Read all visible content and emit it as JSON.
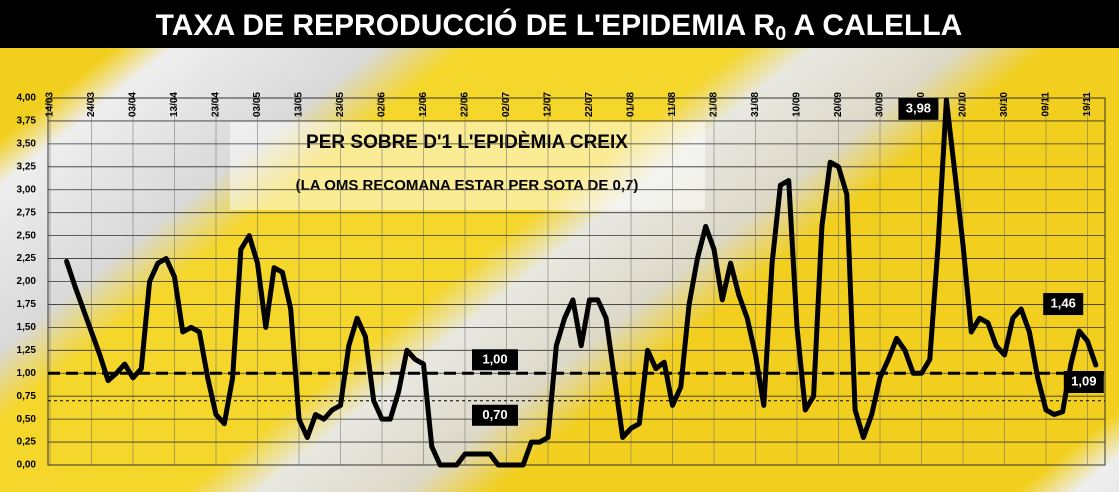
{
  "chart_data": {
    "type": "line",
    "title_main": "TAXA DE REPRODUCCIÓ DE L'EPIDEMIA R",
    "title_subscript": "0",
    "title_end": "A CALELLA",
    "annotations": [
      "PER SOBRE D'1 L'EPIDÈMIA CREIX",
      "(LA OMS RECOMANA ESTAR PER SOTA DE 0,7)"
    ],
    "categories": [
      "14/03",
      null,
      null,
      null,
      null,
      "24/03",
      null,
      null,
      null,
      null,
      "03/04",
      null,
      null,
      null,
      null,
      "13/04",
      null,
      null,
      null,
      null,
      "23/04",
      null,
      null,
      null,
      null,
      "03/05",
      null,
      null,
      null,
      null,
      "13/05",
      null,
      null,
      null,
      null,
      "23/05",
      null,
      null,
      null,
      null,
      "02/06",
      null,
      null,
      null,
      null,
      "12/06",
      null,
      null,
      null,
      null,
      "22/06",
      null,
      null,
      null,
      null,
      "02/07",
      null,
      null,
      null,
      null,
      "12/07",
      null,
      null,
      null,
      null,
      "22/07",
      null,
      null,
      null,
      null,
      "01/08",
      null,
      null,
      null,
      null,
      "11/08",
      null,
      null,
      null,
      null,
      "21/08",
      null,
      null,
      null,
      null,
      "31/08",
      null,
      null,
      null,
      null,
      "10/09",
      null,
      null,
      null,
      null,
      "20/09",
      null,
      null,
      null,
      null,
      "30/09",
      null,
      null,
      null,
      null,
      "10/10",
      null,
      null,
      null,
      null,
      "20/10",
      null,
      null,
      null,
      null,
      "30/10",
      null,
      null,
      null,
      null,
      "09/11",
      null,
      null,
      null,
      null,
      "19/11",
      null
    ],
    "series": [
      {
        "color": "#000000",
        "values": [
          null,
          null,
          2.22,
          1.95,
          1.7,
          1.45,
          1.2,
          0.92,
          1.0,
          1.1,
          0.95,
          1.05,
          2.0,
          2.2,
          2.25,
          2.05,
          1.45,
          1.5,
          1.45,
          0.95,
          0.55,
          0.45,
          0.95,
          2.35,
          2.5,
          2.2,
          1.5,
          2.15,
          2.1,
          1.7,
          0.5,
          0.3,
          0.55,
          0.5,
          0.6,
          0.65,
          1.3,
          1.6,
          1.4,
          0.7,
          0.5,
          0.5,
          0.8,
          1.25,
          1.15,
          1.1,
          0.2,
          0,
          0,
          0,
          0.12,
          0.12,
          0.12,
          0.12,
          0,
          0,
          0,
          0,
          0.25,
          0.25,
          0.3,
          1.3,
          1.6,
          1.8,
          1.3,
          1.8,
          1.8,
          1.6,
          0.95,
          0.3,
          0.4,
          0.45,
          1.25,
          1.05,
          1.12,
          0.65,
          0.85,
          1.75,
          2.25,
          2.6,
          2.35,
          1.8,
          2.2,
          1.85,
          1.6,
          1.2,
          0.65,
          2.2,
          3.05,
          3.1,
          1.5,
          0.6,
          0.75,
          2.6,
          3.3,
          3.25,
          2.95,
          0.6,
          0.3,
          0.55,
          0.95,
          1.15,
          1.38,
          1.25,
          1.0,
          1.0,
          1.15,
          2.4,
          3.98,
          3.2,
          2.4,
          1.45,
          1.6,
          1.55,
          1.3,
          1.2,
          1.6,
          1.7,
          1.45,
          0.95,
          0.6,
          0.55,
          0.58,
          1.1,
          1.46,
          1.35,
          1.09
        ],
        "value_labels": [
          null,
          null,
          null,
          null,
          null,
          null,
          null,
          null,
          null,
          null,
          null,
          null,
          null,
          null,
          null,
          null,
          null,
          null,
          null,
          null,
          null,
          null,
          null,
          null,
          null,
          null,
          null,
          null,
          null,
          null,
          null,
          null,
          null,
          null,
          null,
          null,
          null,
          null,
          null,
          null,
          null,
          null,
          null,
          null,
          null,
          null,
          null,
          null,
          null,
          null,
          null,
          null,
          null,
          null,
          null,
          null,
          null,
          null,
          null,
          null,
          null,
          null,
          null,
          null,
          null,
          null,
          null,
          null,
          null,
          null,
          null,
          null,
          null,
          null,
          null,
          null,
          null,
          null,
          null,
          null,
          null,
          null,
          null,
          null,
          null,
          null,
          null,
          null,
          null,
          null,
          null,
          null,
          null,
          null,
          null,
          null,
          null,
          null,
          null,
          null,
          null,
          null,
          null,
          null,
          null,
          null,
          null,
          null,
          "3,98",
          null,
          null,
          null,
          null,
          null,
          null,
          null,
          null,
          null,
          null,
          null,
          null,
          null,
          null,
          null,
          "1,46",
          null,
          "1,09"
        ]
      }
    ],
    "reference_lines": [
      {
        "value": 1,
        "label": "1,00",
        "style": "dashed"
      },
      {
        "value": 0.7,
        "label": "0,70",
        "style": "dotted"
      }
    ],
    "ylim": [
      0,
      4
    ],
    "yticks": [
      {
        "value": 0,
        "label": "0,00"
      },
      {
        "value": 0.25,
        "label": "0,25"
      },
      {
        "value": 0.5,
        "label": "0,50"
      },
      {
        "value": 0.75,
        "label": "0,75"
      },
      {
        "value": 1,
        "label": "1,00"
      },
      {
        "value": 1.25,
        "label": "1,25"
      },
      {
        "value": 1.5,
        "label": "1,50"
      },
      {
        "value": 1.75,
        "label": "1,75"
      },
      {
        "value": 2,
        "label": "2,00"
      },
      {
        "value": 2.25,
        "label": "2,25"
      },
      {
        "value": 2.5,
        "label": "2,50"
      },
      {
        "value": 2.75,
        "label": "2,75"
      },
      {
        "value": 3,
        "label": "3,00"
      },
      {
        "value": 3.25,
        "label": "3,25"
      },
      {
        "value": 3.5,
        "label": "3,50"
      },
      {
        "value": 3.75,
        "label": "3,75"
      },
      {
        "value": 4,
        "label": "4,00"
      }
    ],
    "grid": true
  }
}
